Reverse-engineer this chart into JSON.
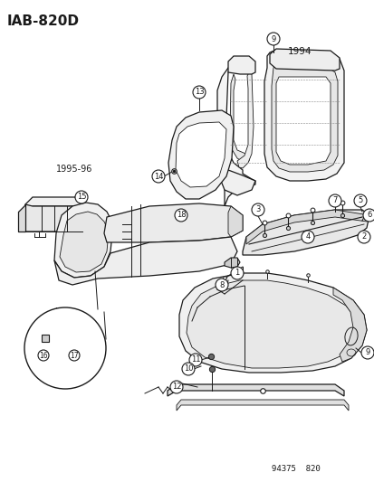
{
  "title": "IAB-820D",
  "bg_color": "#ffffff",
  "line_color": "#1a1a1a",
  "label_year1": "1994",
  "label_year2": "1995-96",
  "footer": "94375  820",
  "fig_width": 4.14,
  "fig_height": 5.33,
  "dpi": 100
}
